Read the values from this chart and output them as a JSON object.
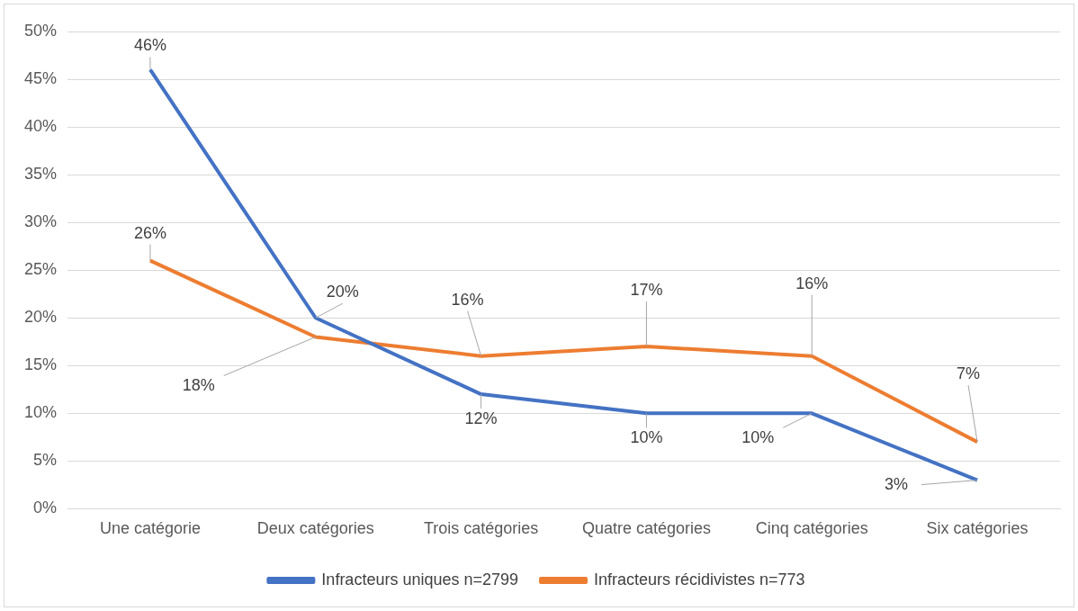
{
  "chart_data": {
    "type": "line",
    "categories": [
      "Une catégorie",
      "Deux catégories",
      "Trois catégories",
      "Quatre catégories",
      "Cinq catégories",
      "Six catégories"
    ],
    "series": [
      {
        "name": "Infracteurs uniques n=2799",
        "color": "#4472c4",
        "values": [
          46,
          20,
          12,
          10,
          10,
          3
        ],
        "value_labels": [
          "46%",
          "20%",
          "12%",
          "10%",
          "10%",
          "3%"
        ]
      },
      {
        "name": "Infracteurs récidivistes n=773",
        "color": "#ed7d31",
        "values": [
          26,
          18,
          16,
          17,
          16,
          7
        ],
        "value_labels": [
          "26%",
          "18%",
          "16%",
          "17%",
          "16%",
          "7%"
        ]
      }
    ],
    "ylim": [
      0,
      50
    ],
    "yticks": [
      {
        "value": 0,
        "label": "0%"
      },
      {
        "value": 5,
        "label": "5%"
      },
      {
        "value": 10,
        "label": "10%"
      },
      {
        "value": 15,
        "label": "15%"
      },
      {
        "value": 20,
        "label": "20%"
      },
      {
        "value": 25,
        "label": "25%"
      },
      {
        "value": 30,
        "label": "30%"
      },
      {
        "value": 35,
        "label": "35%"
      },
      {
        "value": 40,
        "label": "40%"
      },
      {
        "value": 45,
        "label": "45%"
      },
      {
        "value": 50,
        "label": "50%"
      }
    ],
    "grid": "y",
    "legend": "bottom",
    "marker": "none",
    "line_style": "solid"
  }
}
